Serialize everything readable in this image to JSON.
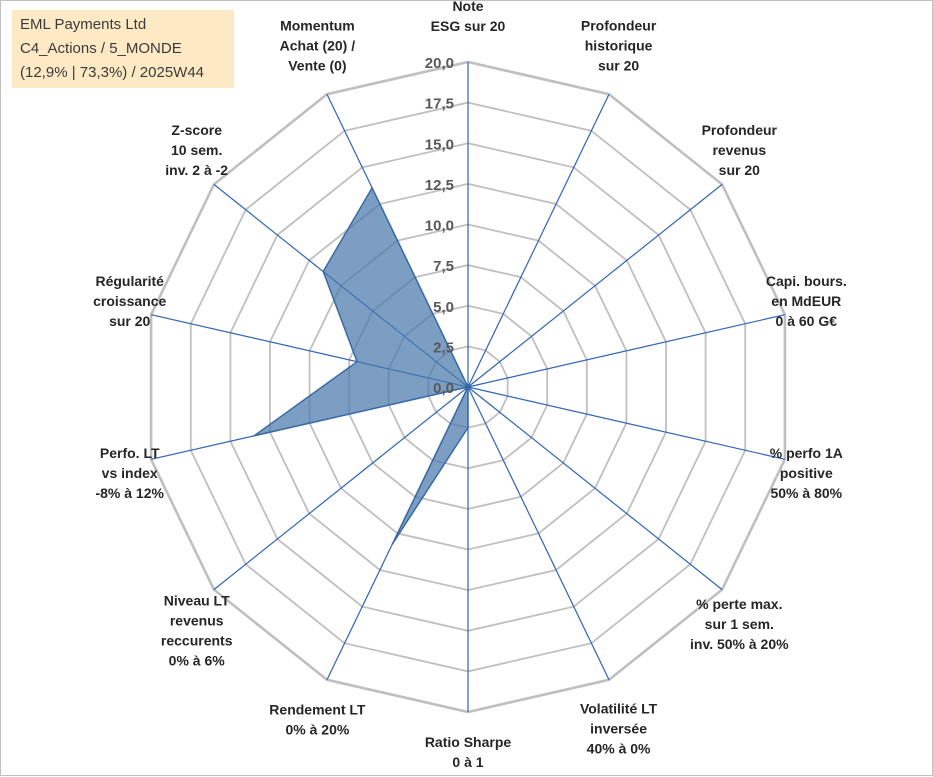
{
  "info_box": {
    "company": "EML Payments Ltd",
    "category": "C4_Actions / 5_MONDE",
    "stats": "(12,9% | 73,3%) / 2025W44"
  },
  "colors": {
    "fill": "#4a78ab",
    "fill_opacity": 0.72,
    "stroke": "#3a6aa6",
    "spoke": "#2f64b5",
    "ring": "#bfbfbf",
    "info_bg": "#fde9c3"
  },
  "chart_data": {
    "type": "radar",
    "title": "",
    "rmin": 0,
    "rmax": 20,
    "tick_labels": [
      "0,0",
      "2,5",
      "5,0",
      "7,5",
      "10,0",
      "12,5",
      "15,0",
      "17,5",
      "20,0"
    ],
    "grid": true,
    "legend": "none",
    "axes": [
      [
        "Note",
        "ESG sur 20"
      ],
      [
        "Profondeur",
        "historique",
        "sur 20"
      ],
      [
        "Profondeur",
        "revenus",
        "sur 20"
      ],
      [
        "Capi. bours.",
        "en MdEUR",
        "0 à 60 G€"
      ],
      [
        "% perfo 1A",
        "positive",
        "50% à 80%"
      ],
      [
        "% perte max.",
        "sur 1 sem.",
        "inv. 50% à 20%"
      ],
      [
        "Volatilité LT",
        "inversée",
        "40% à 0%"
      ],
      [
        "Ratio Sharpe",
        "0 à 1"
      ],
      [
        "Rendement LT",
        "0% à 20%"
      ],
      [
        "Niveau LT",
        "revenus",
        "reccurents",
        "0% à 6%"
      ],
      [
        "Perfo. LT",
        "vs index",
        "-8% à 12%"
      ],
      [
        "Régularité",
        "croissance",
        "sur 20"
      ],
      [
        "Z-score",
        "10 sem.",
        "inv. 2 à -2"
      ],
      [
        "Momentum",
        "Achat (20) /",
        "Vente (0)"
      ]
    ],
    "series": [
      {
        "values": [
          0,
          0,
          0,
          0,
          0,
          0,
          0,
          2.5,
          10.7,
          0,
          13.5,
          7.0,
          11.4,
          13.6
        ]
      }
    ]
  }
}
